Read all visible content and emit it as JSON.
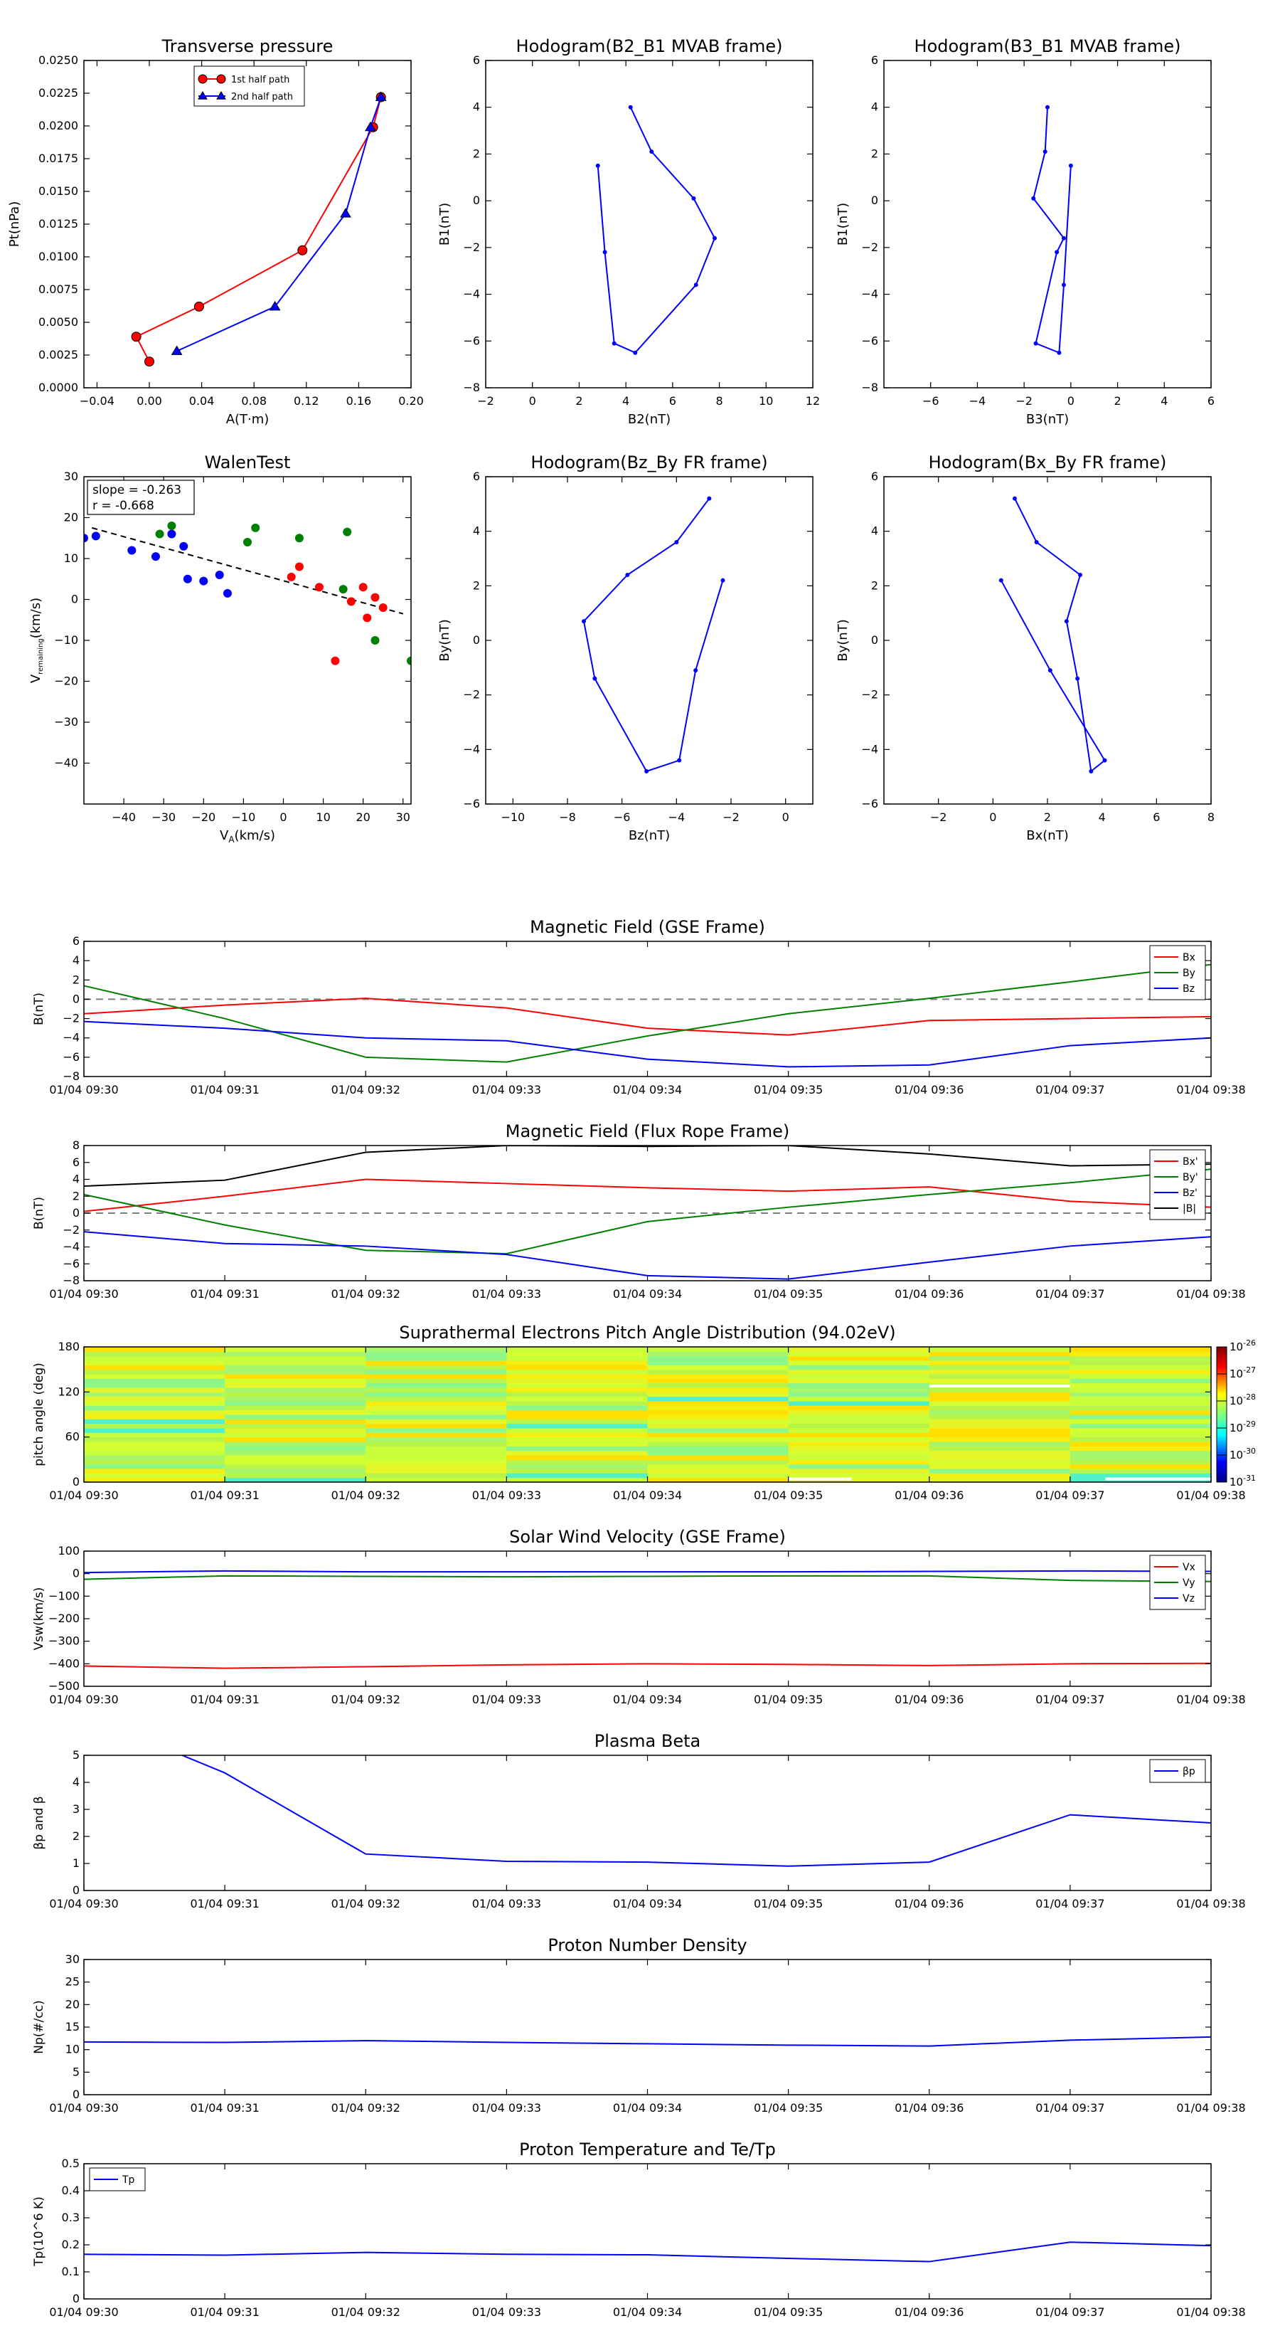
{
  "chart_data": [
    {
      "id": "transverse_pressure",
      "type": "line",
      "title": "Transverse pressure",
      "xlabel": "A(T·m)",
      "ylabel": "Pt(nPa)",
      "xlim": [
        -0.05,
        0.2
      ],
      "ylim": [
        0,
        0.025
      ],
      "xticks": [
        -0.04,
        0,
        0.04,
        0.08,
        0.12,
        0.16,
        0.2
      ],
      "xtick_labels": [
        "−0.04",
        "0.00",
        "0.04",
        "0.08",
        "0.12",
        "0.16",
        "0.20"
      ],
      "yticks": [
        0,
        0.0025,
        0.005,
        0.0075,
        0.01,
        0.0125,
        0.015,
        0.0175,
        0.02,
        0.0225,
        0.025
      ],
      "ytick_labels": [
        "0.0000",
        "0.0025",
        "0.0050",
        "0.0075",
        "0.0100",
        "0.0125",
        "0.0150",
        "0.0175",
        "0.0200",
        "0.0225",
        "0.0250"
      ],
      "legend": "top-center",
      "series": [
        {
          "name": "1st half path",
          "color": "#ff0000",
          "marker": "circle",
          "x": [
            0.0,
            -0.01,
            0.038,
            0.117,
            0.171,
            0.177
          ],
          "y": [
            0.002,
            0.0039,
            0.0062,
            0.0105,
            0.0199,
            0.0222
          ]
        },
        {
          "name": "2nd half path",
          "color": "#0000ff",
          "marker": "triangle",
          "x": [
            0.177,
            0.169,
            0.15,
            0.096,
            0.021
          ],
          "y": [
            0.0222,
            0.0199,
            0.0133,
            0.0062,
            0.0028
          ]
        }
      ]
    },
    {
      "id": "hodo_b2_b1",
      "type": "line",
      "title": "Hodogram(B2_B1 MVAB frame)",
      "xlabel": "B2(nT)",
      "ylabel": "B1(nT)",
      "xlim": [
        -2,
        12
      ],
      "ylim": [
        -8,
        6
      ],
      "xticks": [
        -2,
        0,
        2,
        4,
        6,
        8,
        10,
        12
      ],
      "yticks": [
        -8,
        -6,
        -4,
        -2,
        0,
        2,
        4,
        6
      ],
      "series": [
        {
          "color": "#0000ff",
          "x": [
            4.2,
            5.1,
            6.9,
            7.8,
            7.0,
            4.4,
            3.5,
            3.1,
            2.8
          ],
          "y": [
            4.0,
            2.1,
            0.1,
            -1.6,
            -3.6,
            -6.5,
            -6.1,
            -2.2,
            1.5
          ]
        }
      ]
    },
    {
      "id": "hodo_b3_b1",
      "type": "line",
      "title": "Hodogram(B3_B1 MVAB frame)",
      "xlabel": "B3(nT)",
      "ylabel": "B1(nT)",
      "xlim": [
        -8,
        6
      ],
      "ylim": [
        -8,
        6
      ],
      "xticks": [
        -6,
        -4,
        -2,
        0,
        2,
        4,
        6
      ],
      "yticks": [
        -8,
        -6,
        -4,
        -2,
        0,
        2,
        4,
        6
      ],
      "series": [
        {
          "color": "#0000ff",
          "x": [
            -1.0,
            -1.1,
            -1.6,
            -0.3,
            -0.6,
            -1.5,
            -0.5,
            -0.3,
            0.0
          ],
          "y": [
            4.0,
            2.1,
            0.1,
            -1.6,
            -2.2,
            -6.1,
            -6.5,
            -3.6,
            1.5
          ]
        }
      ]
    },
    {
      "id": "walen",
      "type": "scatter",
      "title": "WalenTest",
      "xlabel": "V_A(km/s)",
      "ylabel": "V_remaining(km/s)",
      "xlim": [
        -50,
        32
      ],
      "ylim": [
        -50,
        30
      ],
      "xticks": [
        -40,
        -30,
        -20,
        -10,
        0,
        10,
        20,
        30
      ],
      "yticks": [
        -40,
        -30,
        -20,
        -10,
        0,
        10,
        20,
        30
      ],
      "annotations": [
        "slope = -0.263",
        "r = -0.668"
      ],
      "fit": {
        "slope": -0.263,
        "x": [
          -48,
          30
        ],
        "y": [
          17.5,
          -3.5
        ]
      },
      "series": [
        {
          "color": "#0000ff",
          "x": [
            -50,
            -47,
            -38,
            -32,
            -28,
            -25,
            -24,
            -20,
            -16,
            -14
          ],
          "y": [
            15,
            15.5,
            12,
            10.5,
            16,
            13,
            5,
            4.5,
            6,
            1.5
          ]
        },
        {
          "color": "#008000",
          "x": [
            -31,
            -28,
            -9,
            -7,
            4,
            15,
            16,
            23,
            32
          ],
          "y": [
            16,
            18,
            14,
            17.5,
            15,
            2.5,
            16.5,
            -10,
            -15
          ]
        },
        {
          "color": "#ff0000",
          "x": [
            2,
            4,
            9,
            13,
            17,
            20,
            21,
            23,
            25
          ],
          "y": [
            5.5,
            8,
            3,
            -15,
            -0.5,
            3,
            -4.5,
            0.5,
            -2
          ]
        }
      ]
    },
    {
      "id": "hodo_bz_by",
      "type": "line",
      "title": "Hodogram(Bz_By FR frame)",
      "xlabel": "Bz(nT)",
      "ylabel": "By(nT)",
      "xlim": [
        -11,
        1
      ],
      "ylim": [
        -6,
        6
      ],
      "xticks": [
        -10,
        -8,
        -6,
        -4,
        -2,
        0
      ],
      "yticks": [
        -6,
        -4,
        -2,
        0,
        2,
        4,
        6
      ],
      "series": [
        {
          "color": "#0000ff",
          "x": [
            -2.8,
            -4.0,
            -5.8,
            -7.4,
            -7.0,
            -5.1,
            -3.9,
            -3.3,
            -2.3
          ],
          "y": [
            5.2,
            3.6,
            2.4,
            0.7,
            -1.4,
            -4.8,
            -4.4,
            -1.1,
            2.2
          ]
        }
      ]
    },
    {
      "id": "hodo_bx_by",
      "type": "line",
      "title": "Hodogram(Bx_By FR frame)",
      "xlabel": "Bx(nT)",
      "ylabel": "By(nT)",
      "xlim": [
        -4,
        8
      ],
      "ylim": [
        -6,
        6
      ],
      "xticks": [
        -2,
        0,
        2,
        4,
        6,
        8
      ],
      "yticks": [
        -6,
        -4,
        -2,
        0,
        2,
        4,
        6
      ],
      "series": [
        {
          "color": "#0000ff",
          "x": [
            0.8,
            1.6,
            3.2,
            2.7,
            3.1,
            3.6,
            4.1,
            2.1,
            0.3
          ],
          "y": [
            5.2,
            3.6,
            2.4,
            0.7,
            -1.4,
            -4.8,
            -4.4,
            -1.1,
            2.2
          ]
        }
      ]
    },
    {
      "id": "mag_gse",
      "type": "line",
      "title": "Magnetic Field (GSE Frame)",
      "ylabel": "B(nT)",
      "ylim": [
        -8,
        6
      ],
      "yticks": [
        -8,
        -6,
        -4,
        -2,
        0,
        2,
        4,
        6
      ],
      "x": [
        "01/04 09:30",
        "01/04 09:31",
        "01/04 09:32",
        "01/04 09:33",
        "01/04 09:34",
        "01/04 09:35",
        "01/04 09:36",
        "01/04 09:37",
        "01/04 09:38"
      ],
      "legend": "top-right",
      "hline": {
        "y": 0,
        "style": "dashed"
      },
      "series": [
        {
          "name": "Bx",
          "color": "#ff0000",
          "values": [
            -1.5,
            -0.6,
            0.1,
            -0.9,
            -3.0,
            -3.7,
            -2.2,
            -2.0,
            -1.8
          ]
        },
        {
          "name": "By",
          "color": "#008000",
          "values": [
            1.4,
            -2.0,
            -6.0,
            -6.5,
            -3.8,
            -1.5,
            0.1,
            1.8,
            3.6
          ]
        },
        {
          "name": "Bz",
          "color": "#0000ff",
          "values": [
            -2.3,
            -3.0,
            -4.0,
            -4.3,
            -6.2,
            -7.0,
            -6.8,
            -4.8,
            -4.0
          ]
        }
      ]
    },
    {
      "id": "mag_fr",
      "type": "line",
      "title": "Magnetic Field (Flux Rope Frame)",
      "ylabel": "B(nT)",
      "ylim": [
        -8,
        8
      ],
      "yticks": [
        -8,
        -6,
        -4,
        -2,
        0,
        2,
        4,
        6,
        8
      ],
      "x": [
        "01/04 09:30",
        "01/04 09:31",
        "01/04 09:32",
        "01/04 09:33",
        "01/04 09:34",
        "01/04 09:35",
        "01/04 09:36",
        "01/04 09:37",
        "01/04 09:38"
      ],
      "legend": "top-right",
      "hline": {
        "y": 0,
        "style": "dashed"
      },
      "series": [
        {
          "name": "Bx'",
          "color": "#ff0000",
          "values": [
            0.2,
            2.0,
            4.0,
            3.5,
            3.0,
            2.6,
            3.1,
            1.4,
            0.7
          ]
        },
        {
          "name": "By'",
          "color": "#008000",
          "values": [
            2.2,
            -1.4,
            -4.4,
            -4.8,
            -1.0,
            0.7,
            2.2,
            3.6,
            5.2
          ]
        },
        {
          "name": "Bz'",
          "color": "#0000ff",
          "values": [
            -2.2,
            -3.6,
            -3.9,
            -4.9,
            -7.4,
            -7.8,
            -5.8,
            -3.9,
            -2.8
          ]
        },
        {
          "name": "|B|",
          "color": "#000000",
          "values": [
            3.2,
            3.9,
            7.2,
            8.0,
            7.9,
            8.0,
            7.0,
            5.6,
            5.8
          ]
        }
      ]
    },
    {
      "id": "pad",
      "type": "heatmap",
      "title": "Suprathermal Electrons Pitch Angle Distribution (94.02eV)",
      "ylabel": "pitch angle (deg)",
      "ylim": [
        0,
        180
      ],
      "yticks": [
        0,
        60,
        120,
        180
      ],
      "x": [
        "01/04 09:30",
        "01/04 09:31",
        "01/04 09:32",
        "01/04 09:33",
        "01/04 09:34",
        "01/04 09:35",
        "01/04 09:36",
        "01/04 09:37",
        "01/04 09:38"
      ],
      "colorbar_ticks": [
        "10^-26",
        "10^-27",
        "10^-28",
        "10^-29",
        "10^-30",
        "10^-31"
      ],
      "colorbar_exponents": [
        -26,
        -27,
        -28,
        -29,
        -30,
        -31
      ]
    },
    {
      "id": "vsw",
      "type": "line",
      "title": "Solar Wind Velocity (GSE Frame)",
      "ylabel": "Vsw(km/s)",
      "ylim": [
        -500,
        100
      ],
      "yticks": [
        -500,
        -400,
        -300,
        -200,
        -100,
        0,
        100
      ],
      "x": [
        "01/04 09:30",
        "01/04 09:31",
        "01/04 09:32",
        "01/04 09:33",
        "01/04 09:34",
        "01/04 09:35",
        "01/04 09:36",
        "01/04 09:37",
        "01/04 09:38"
      ],
      "legend": "top-right",
      "series": [
        {
          "name": "Vx",
          "color": "#ff0000",
          "values": [
            -410,
            -420,
            -413,
            -405,
            -400,
            -403,
            -408,
            -400,
            -398
          ]
        },
        {
          "name": "Vy",
          "color": "#008000",
          "values": [
            -25,
            -10,
            -12,
            -14,
            -12,
            -10,
            -10,
            -30,
            -35
          ]
        },
        {
          "name": "Vz",
          "color": "#0000ff",
          "values": [
            5,
            12,
            8,
            8,
            8,
            8,
            10,
            12,
            10
          ]
        }
      ]
    },
    {
      "id": "beta",
      "type": "line",
      "title": "Plasma Beta",
      "ylabel": "βp and β",
      "ylim": [
        0,
        5
      ],
      "yticks": [
        0,
        1,
        2,
        3,
        4,
        5
      ],
      "x": [
        "01/04 09:30",
        "01/04 09:31",
        "01/04 09:32",
        "01/04 09:33",
        "01/04 09:34",
        "01/04 09:35",
        "01/04 09:36",
        "01/04 09:37",
        "01/04 09:38"
      ],
      "legend": "top-right",
      "series": [
        {
          "name": "βp",
          "color": "#0000ff",
          "values": [
            6.5,
            4.35,
            1.35,
            1.08,
            1.05,
            0.9,
            1.05,
            2.8,
            2.5
          ]
        }
      ]
    },
    {
      "id": "np",
      "type": "line",
      "title": "Proton Number Density",
      "ylabel": "Np(#/cc)",
      "ylim": [
        0,
        30
      ],
      "yticks": [
        0,
        5,
        10,
        15,
        20,
        25,
        30
      ],
      "x": [
        "01/04 09:30",
        "01/04 09:31",
        "01/04 09:32",
        "01/04 09:33",
        "01/04 09:34",
        "01/04 09:35",
        "01/04 09:36",
        "01/04 09:37",
        "01/04 09:38"
      ],
      "series": [
        {
          "color": "#0000ff",
          "values": [
            11.7,
            11.6,
            12.0,
            11.6,
            11.3,
            11.0,
            10.8,
            12.1,
            12.8
          ]
        }
      ]
    },
    {
      "id": "tp",
      "type": "line",
      "title": "Proton Temperature and Te/Tp",
      "ylabel": "Tp(10^6 K)",
      "ylim": [
        0,
        0.5
      ],
      "yticks": [
        0,
        0.1,
        0.2,
        0.3,
        0.4,
        0.5
      ],
      "x": [
        "01/04 09:30",
        "01/04 09:31",
        "01/04 09:32",
        "01/04 09:33",
        "01/04 09:34",
        "01/04 09:35",
        "01/04 09:36",
        "01/04 09:37",
        "01/04 09:38"
      ],
      "legend": "top-left",
      "series": [
        {
          "name": "Tp",
          "color": "#0000ff",
          "values": [
            0.165,
            0.162,
            0.172,
            0.165,
            0.163,
            0.15,
            0.138,
            0.21,
            0.197
          ]
        }
      ]
    }
  ]
}
